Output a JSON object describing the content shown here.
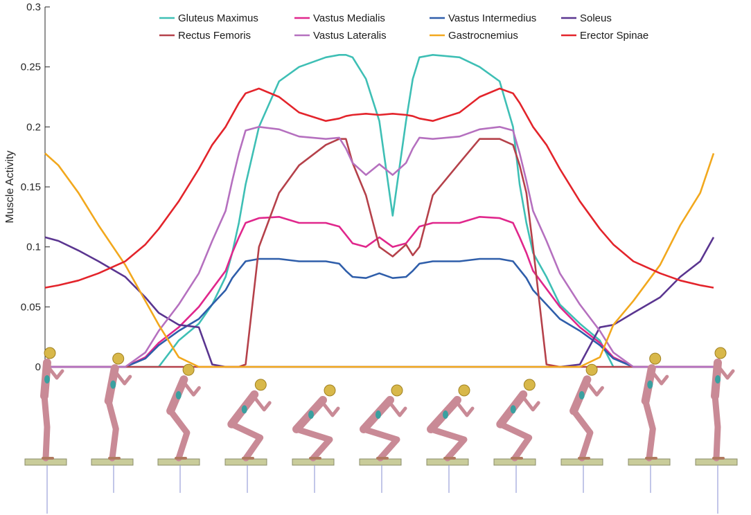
{
  "chart_data": {
    "type": "line",
    "title": "",
    "xlabel": "",
    "ylabel": "Muscle Activity",
    "ylim": [
      0,
      0.3
    ],
    "yticks": [
      "0",
      "0.05",
      "0.1",
      "0.15",
      "0.2",
      "0.25",
      "0.3"
    ],
    "ytick_values": [
      0,
      0.05,
      0.1,
      0.15,
      0.2,
      0.25,
      0.3
    ],
    "xlim": [
      0,
      100
    ],
    "grid": false,
    "legend_position": "top-center",
    "x": [
      0,
      2,
      5,
      8,
      12,
      15,
      17,
      20,
      23,
      25,
      27,
      28,
      29,
      30,
      32,
      35,
      38,
      42,
      44,
      45,
      46,
      48,
      50,
      52,
      54,
      55,
      56,
      58,
      62,
      65,
      68,
      70,
      71,
      72,
      73,
      75,
      77,
      80,
      83,
      85,
      88,
      92,
      95,
      98,
      100
    ],
    "series": [
      {
        "name": "Gluteus Maximus",
        "color": "#3ebfb5",
        "values": [
          0,
          0,
          0,
          0,
          0,
          0,
          0,
          0.022,
          0.036,
          0.052,
          0.075,
          0.095,
          0.12,
          0.152,
          0.2,
          0.238,
          0.25,
          0.258,
          0.26,
          0.26,
          0.258,
          0.24,
          0.205,
          0.126,
          0.205,
          0.24,
          0.258,
          0.26,
          0.258,
          0.25,
          0.238,
          0.2,
          0.152,
          0.12,
          0.095,
          0.075,
          0.052,
          0.036,
          0.022,
          0,
          0,
          0,
          0,
          0,
          0
        ]
      },
      {
        "name": "Vastus Medialis",
        "color": "#e0278c",
        "values": [
          0,
          0,
          0,
          0,
          0,
          0.008,
          0.02,
          0.033,
          0.05,
          0.065,
          0.08,
          0.095,
          0.108,
          0.12,
          0.124,
          0.125,
          0.12,
          0.12,
          0.117,
          0.11,
          0.103,
          0.1,
          0.108,
          0.1,
          0.103,
          0.11,
          0.117,
          0.12,
          0.12,
          0.125,
          0.124,
          0.12,
          0.108,
          0.095,
          0.08,
          0.065,
          0.05,
          0.033,
          0.02,
          0.008,
          0,
          0,
          0,
          0,
          0
        ]
      },
      {
        "name": "Vastus Intermedius",
        "color": "#2f5eaa",
        "values": [
          0,
          0,
          0,
          0,
          0,
          0.007,
          0.018,
          0.03,
          0.04,
          0.052,
          0.064,
          0.074,
          0.081,
          0.088,
          0.09,
          0.09,
          0.088,
          0.088,
          0.086,
          0.08,
          0.075,
          0.074,
          0.078,
          0.074,
          0.075,
          0.08,
          0.086,
          0.088,
          0.088,
          0.09,
          0.09,
          0.088,
          0.081,
          0.074,
          0.064,
          0.052,
          0.04,
          0.03,
          0.018,
          0.007,
          0,
          0,
          0,
          0,
          0
        ]
      },
      {
        "name": "Soleus",
        "color": "#5a3590",
        "values": [
          0.108,
          0.105,
          0.097,
          0.088,
          0.075,
          0.058,
          0.045,
          0.035,
          0.033,
          0.002,
          0,
          0,
          0,
          0,
          0,
          0,
          0,
          0,
          0,
          0,
          0,
          0,
          0,
          0,
          0,
          0,
          0,
          0,
          0,
          0,
          0,
          0,
          0,
          0,
          0,
          0,
          0,
          0.002,
          0.033,
          0.035,
          0.045,
          0.058,
          0.075,
          0.088,
          0.108
        ]
      },
      {
        "name": "Rectus Femoris",
        "color": "#b5414a",
        "values": [
          0,
          0,
          0,
          0,
          0,
          0,
          0,
          0,
          0,
          0,
          0,
          0,
          0,
          0.002,
          0.1,
          0.145,
          0.168,
          0.185,
          0.19,
          0.19,
          0.17,
          0.143,
          0.1,
          0.092,
          0.102,
          0.093,
          0.1,
          0.143,
          0.17,
          0.19,
          0.19,
          0.185,
          0.168,
          0.145,
          0.1,
          0.002,
          0,
          0,
          0,
          0,
          0,
          0,
          0,
          0,
          0
        ]
      },
      {
        "name": "Vastus Lateralis",
        "color": "#b570bf",
        "values": [
          0,
          0,
          0,
          0,
          0,
          0.012,
          0.03,
          0.052,
          0.078,
          0.105,
          0.13,
          0.155,
          0.178,
          0.197,
          0.2,
          0.198,
          0.192,
          0.19,
          0.191,
          0.182,
          0.17,
          0.16,
          0.169,
          0.16,
          0.17,
          0.182,
          0.191,
          0.19,
          0.192,
          0.198,
          0.2,
          0.197,
          0.178,
          0.155,
          0.13,
          0.105,
          0.078,
          0.052,
          0.03,
          0.012,
          0,
          0,
          0,
          0,
          0
        ]
      },
      {
        "name": "Gastrocnemius",
        "color": "#f2a81d",
        "values": [
          0.178,
          0.168,
          0.145,
          0.118,
          0.085,
          0.055,
          0.035,
          0.008,
          0,
          0,
          0,
          0,
          0,
          0,
          0,
          0,
          0,
          0,
          0,
          0,
          0,
          0,
          0,
          0,
          0,
          0,
          0,
          0,
          0,
          0,
          0,
          0,
          0,
          0,
          0,
          0,
          0,
          0,
          0.008,
          0.035,
          0.055,
          0.085,
          0.118,
          0.145,
          0.178
        ]
      },
      {
        "name": "Erector Spinae",
        "color": "#e3242b",
        "values": [
          0.066,
          0.068,
          0.072,
          0.078,
          0.088,
          0.102,
          0.115,
          0.138,
          0.165,
          0.185,
          0.2,
          0.21,
          0.22,
          0.228,
          0.232,
          0.225,
          0.212,
          0.205,
          0.207,
          0.209,
          0.21,
          0.211,
          0.21,
          0.211,
          0.21,
          0.209,
          0.207,
          0.205,
          0.212,
          0.225,
          0.232,
          0.228,
          0.22,
          0.21,
          0.2,
          0.185,
          0.165,
          0.138,
          0.115,
          0.102,
          0.088,
          0.078,
          0.072,
          0.068,
          0.066
        ]
      }
    ]
  }
}
